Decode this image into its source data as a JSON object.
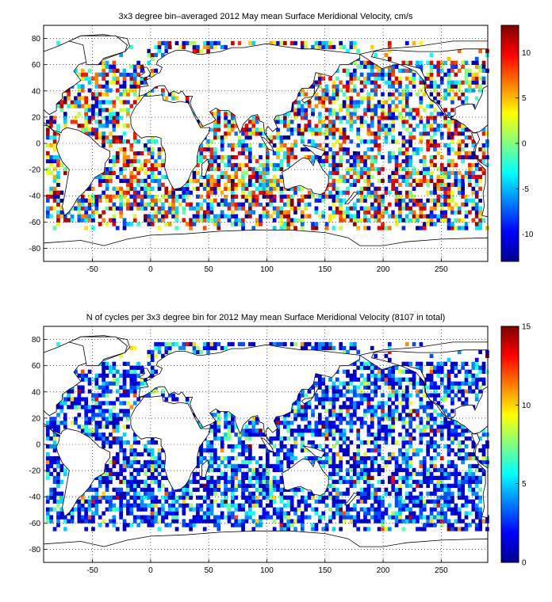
{
  "maps": [
    {
      "title": "3x3 degree bin–averaged 2012 May mean Surface Meridional Velocity, cm/s",
      "x_ticks": [
        "-50",
        "0",
        "50",
        "100",
        "150",
        "200",
        "250"
      ],
      "y_ticks": [
        "80",
        "60",
        "40",
        "20",
        "0",
        "-20",
        "-40",
        "-60",
        "-80"
      ],
      "colorbar_ticks": [
        "10",
        "5",
        "0",
        "-5",
        "-10"
      ],
      "colormap": "jet",
      "clim": [
        -13,
        13
      ]
    },
    {
      "title": "N of cycles per 3x3 degree bin for 2012 May mean Surface Meridional Velocity (8107 in total)",
      "x_ticks": [
        "-50",
        "0",
        "50",
        "100",
        "150",
        "200",
        "250"
      ],
      "y_ticks": [
        "80",
        "60",
        "40",
        "20",
        "0",
        "-20",
        "-40",
        "-60",
        "-80"
      ],
      "colorbar_ticks": [
        "15",
        "10",
        "5",
        "0"
      ],
      "colormap": "jet",
      "clim": [
        0,
        15
      ]
    }
  ]
}
